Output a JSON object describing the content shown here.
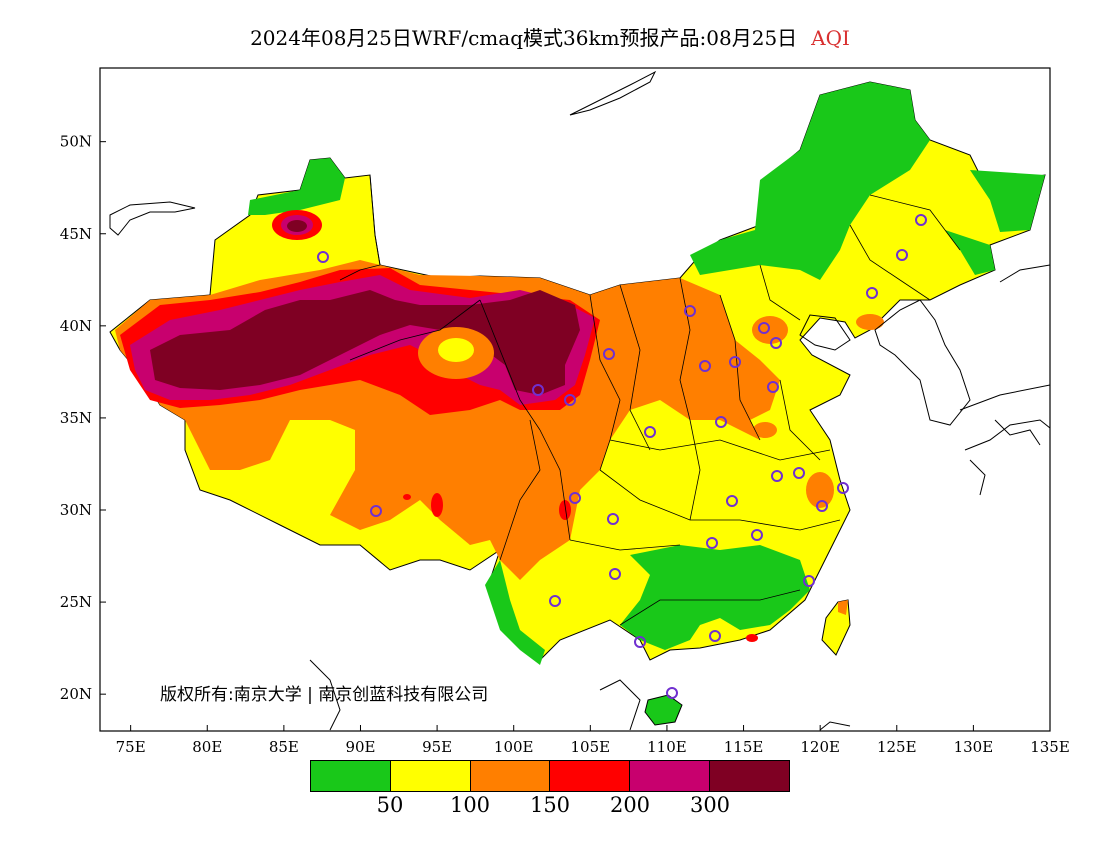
{
  "title": {
    "main": "2024年08月25日WRF/cmaq模式36km预报产品:08月25日",
    "variable": "AQI"
  },
  "map": {
    "lon_range": [
      73,
      135
    ],
    "lat_range": [
      18,
      54
    ],
    "x_ticks": [
      "75E",
      "80E",
      "85E",
      "90E",
      "95E",
      "100E",
      "105E",
      "110E",
      "115E",
      "120E",
      "125E",
      "130E",
      "135E"
    ],
    "y_ticks": [
      "20N",
      "25N",
      "30N",
      "35N",
      "40N",
      "45N",
      "50N"
    ]
  },
  "legend": {
    "colors": [
      "#19c819",
      "#ffff00",
      "#ff7f00",
      "#ff0000",
      "#c8006e",
      "#7f0023"
    ],
    "labels": [
      "50",
      "100",
      "150",
      "200",
      "300"
    ]
  },
  "copyright": "版权所有:南京大学 | 南京创蓝科技有限公司",
  "colors": {
    "good": "#19c819",
    "moderate": "#ffff00",
    "usg": "#ff7f00",
    "unhealthy": "#ff0000",
    "very_unhealthy": "#c8006e",
    "hazardous": "#7f0023",
    "station_marker": "#7030d0",
    "title_accent": "#d93030"
  }
}
